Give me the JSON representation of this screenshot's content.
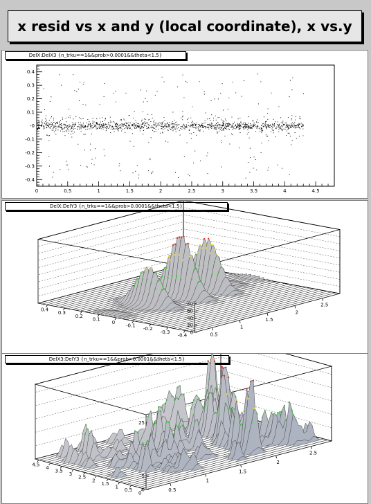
{
  "header": {
    "title": "x resid vs x and y (local coordinate), x vs.y"
  },
  "pads": [
    {
      "label": "DelX:DelX3 {n_trku==1&&prob>0.0001&&theta<1.5}"
    },
    {
      "label": "DelX:DelY3 {n_trku==1&&prob>0.0001&&theta<1.5}"
    },
    {
      "label": "DelX3:DelY3 {n_trku==1&&prob>0.0001&&theta<1.5}"
    }
  ],
  "chart_data": [
    {
      "type": "scatter",
      "title": "DelX:DelX3 {n_trku==1&&prob>0.0001&&theta<1.5}",
      "xlabel": "",
      "ylabel": "",
      "xlim": [
        0,
        4.8
      ],
      "ylim": [
        -0.45,
        0.45
      ],
      "x_ticks": [
        "0",
        "0.5",
        "1",
        "1.5",
        "2",
        "2.5",
        "3",
        "3.5",
        "4",
        "4.5"
      ],
      "y_ticks": [
        "-0.4",
        "-0.3",
        "-0.2",
        "-0.1",
        "-0",
        "0.1",
        "0.2",
        "0.3",
        "0.4"
      ],
      "x_range_of_points": [
        0.0,
        4.3
      ],
      "y_core": [
        -0.1,
        0.1
      ],
      "grid": false
    },
    {
      "type": "surface",
      "title": "DelX:DelY3 {n_trku==1&&prob>0.0001&&theta<1.5}",
      "z_ticks": [
        "0",
        "20",
        "40",
        "60",
        "80",
        "100",
        "120",
        "140",
        "160",
        "180"
      ],
      "left_axis_ticks": [
        "0.4",
        "0.3",
        "0.2",
        "0.1",
        "0",
        "-0.1",
        "-0.2",
        "-0.3",
        "-0.4"
      ],
      "right_axis_ticks": [
        "0.5",
        "1",
        "1.5",
        "2",
        "2.5"
      ],
      "zlim": [
        0,
        180
      ],
      "peaks": [
        {
          "right": 0.9,
          "left": 0.0,
          "z": 110
        },
        {
          "right": 1.6,
          "left": 0.0,
          "z": 170
        },
        {
          "right": 2.1,
          "left": 0.0,
          "z": 140
        }
      ]
    },
    {
      "type": "surface",
      "title": "DelX3:DelY3 {n_trku==1&&prob>0.0001&&theta<1.5}",
      "z_ticks": [
        "0",
        "5",
        "10",
        "15",
        "20",
        "25"
      ],
      "left_axis_ticks": [
        "4.5",
        "4",
        "3.5",
        "3",
        "2.5",
        "2",
        "1.5",
        "1",
        "0.5",
        "0"
      ],
      "right_axis_ticks": [
        "0.5",
        "1",
        "1.5",
        "2",
        "2.5"
      ],
      "zlim": [
        0,
        28
      ],
      "peak_max": 26
    }
  ]
}
